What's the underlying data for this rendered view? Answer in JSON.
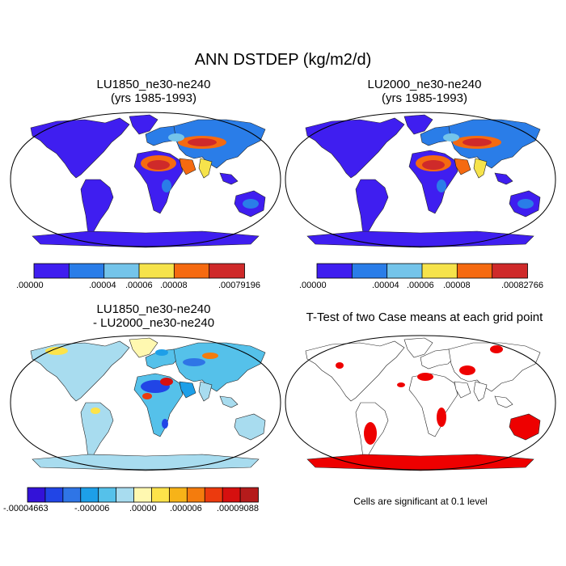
{
  "figure": {
    "title": "ANN DSTDEP (kg/m2/d)"
  },
  "panels": [
    {
      "id": "lu1850",
      "title_line1": "LU1850_ne30-ne240",
      "title_line2": "(yrs 1985-1993)",
      "colorbar": {
        "colors": [
          "#3f1ef0",
          "#2a7de8",
          "#74c4ea",
          "#f6e34b",
          "#f56a10",
          "#cf2a2a"
        ],
        "labels": [
          ".00000",
          ".00004",
          ".00006",
          ".00008",
          ".00079196"
        ]
      }
    },
    {
      "id": "lu2000",
      "title_line1": "LU2000_ne30-ne240",
      "title_line2": "(yrs 1985-1993)",
      "colorbar": {
        "colors": [
          "#3f1ef0",
          "#2a7de8",
          "#74c4ea",
          "#f6e34b",
          "#f56a10",
          "#cf2a2a"
        ],
        "labels": [
          ".00000",
          ".00004",
          ".00006",
          ".00008",
          ".00082766"
        ]
      }
    },
    {
      "id": "diff",
      "title_line1": "LU1850_ne30-ne240",
      "title_line2": "- LU2000_ne30-ne240",
      "colorbar": {
        "colors": [
          "#3312d8",
          "#2145e6",
          "#2f75e6",
          "#1d9fe8",
          "#55c1ea",
          "#a8dcef",
          "#fff8b0",
          "#fde34a",
          "#f7b318",
          "#f47c0d",
          "#ec3a0e",
          "#d6100f",
          "#b51b1b"
        ],
        "labels": [
          "-.00004663",
          "-.000006",
          ".00000",
          ".000006",
          ".00009088"
        ]
      }
    },
    {
      "id": "ttest",
      "title_line1": "T-Test of two Case means at each grid point",
      "note": "Cells are significant at 0.1 level",
      "significant_color": "#ee0000"
    }
  ]
}
